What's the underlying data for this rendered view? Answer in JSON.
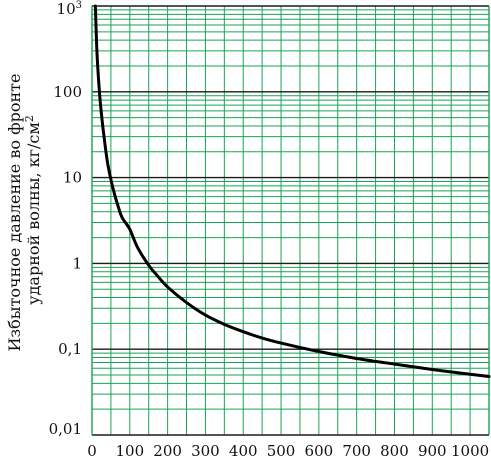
{
  "chart_data": {
    "type": "line",
    "title": "",
    "ylabel_lines": [
      "Избыточное давление во фронте",
      "ударной волны, кг/см"
    ],
    "ylabel_superscript": "2",
    "xlabel": "",
    "x_scale": "linear",
    "y_scale": "log",
    "xlim": [
      0,
      1050
    ],
    "ylim": [
      0.01,
      1000
    ],
    "x_ticks": [
      0,
      100,
      200,
      300,
      400,
      500,
      600,
      700,
      800,
      900,
      1000
    ],
    "x_tick_labels": [
      "0",
      "100",
      "200",
      "300",
      "400",
      "500",
      "600",
      "700",
      "800",
      "900",
      "1000"
    ],
    "y_ticks": [
      0.01,
      0.1,
      1,
      10,
      100,
      1000
    ],
    "y_tick_labels": [
      {
        "base": "0,01",
        "sup": ""
      },
      {
        "base": "0,1",
        "sup": ""
      },
      {
        "base": "1",
        "sup": ""
      },
      {
        "base": "10",
        "sup": ""
      },
      {
        "base": "100",
        "sup": ""
      },
      {
        "base": "10",
        "sup": "3"
      }
    ],
    "grid": true,
    "colors": {
      "minor_grid": "#1aa356",
      "major_grid": "#1a1a1a",
      "curve": "#000000"
    },
    "series": [
      {
        "name": "",
        "x": [
          9,
          12,
          15,
          20,
          25,
          30,
          40,
          50,
          60,
          70,
          80,
          100,
          120,
          150,
          175,
          200,
          250,
          300,
          350,
          400,
          450,
          500,
          600,
          700,
          800,
          900,
          1000,
          1050
        ],
        "y": [
          1000,
          380,
          200,
          95,
          55,
          35,
          16,
          9.5,
          6.3,
          4.5,
          3.4,
          2.5,
          1.55,
          0.95,
          0.7,
          0.53,
          0.35,
          0.25,
          0.195,
          0.16,
          0.135,
          0.118,
          0.094,
          0.078,
          0.067,
          0.058,
          0.051,
          0.048
        ]
      }
    ]
  }
}
